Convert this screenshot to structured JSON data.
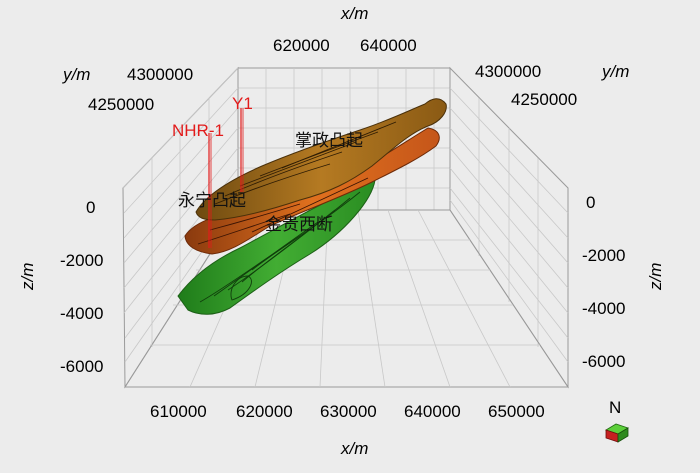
{
  "axes": {
    "x_label": "x/m",
    "y_label": "y/m",
    "z_label": "z/m",
    "x_top_ticks": [
      "620000",
      "640000"
    ],
    "x_bottom_ticks": [
      "610000",
      "620000",
      "630000",
      "640000",
      "650000"
    ],
    "y_left_ticks": [
      "4300000",
      "4250000"
    ],
    "y_right_ticks": [
      "4300000",
      "4250000"
    ],
    "z_left_ticks": [
      "0",
      "-2000",
      "-4000",
      "-6000"
    ],
    "z_right_ticks": [
      "0",
      "-2000",
      "-4000",
      "-6000"
    ]
  },
  "wells": [
    "Y1",
    "NHR-1"
  ],
  "structure_labels": {
    "zhangzheng": "掌政凸起",
    "yongning": "永宁凸起",
    "jingui": "金贵西断"
  },
  "north_indicator": "N",
  "colors": {
    "layer_top": "#a86e1c",
    "layer_mid": "#d86418",
    "layer_bottom": "#2f9a26",
    "well": "#e21b1b"
  }
}
